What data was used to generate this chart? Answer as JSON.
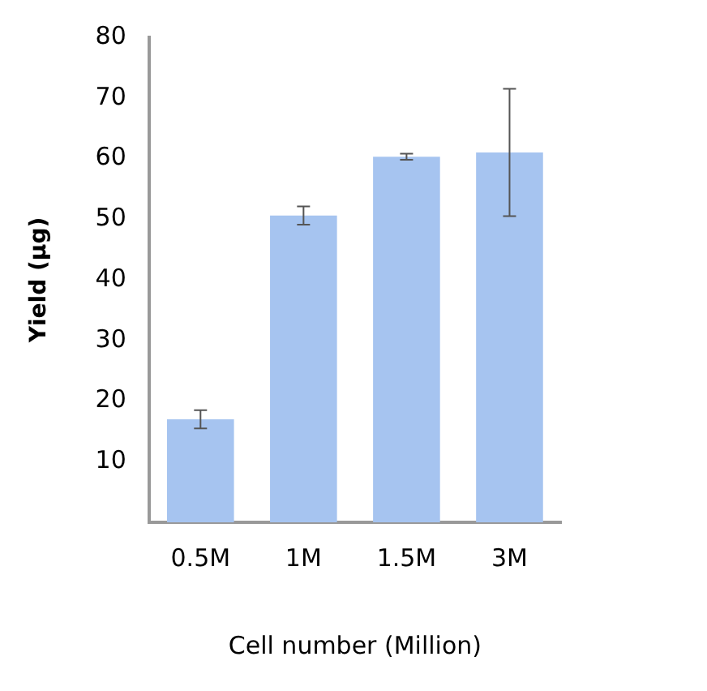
{
  "chart_data": {
    "type": "bar",
    "xlabel": "Cell number (Million)",
    "ylabel": "Yield (µg)",
    "categories": [
      "0.5M",
      "1M",
      "1.5M",
      "3M"
    ],
    "values": [
      17,
      50.6,
      60.3,
      61
    ],
    "errors": [
      1.5,
      1.5,
      0.5,
      10.5
    ],
    "color": "#a6c4f0",
    "ylim": [
      0,
      80
    ],
    "yticks": [
      10,
      20,
      30,
      40,
      50,
      60,
      70,
      80
    ],
    "grid": false,
    "legend": false
  }
}
